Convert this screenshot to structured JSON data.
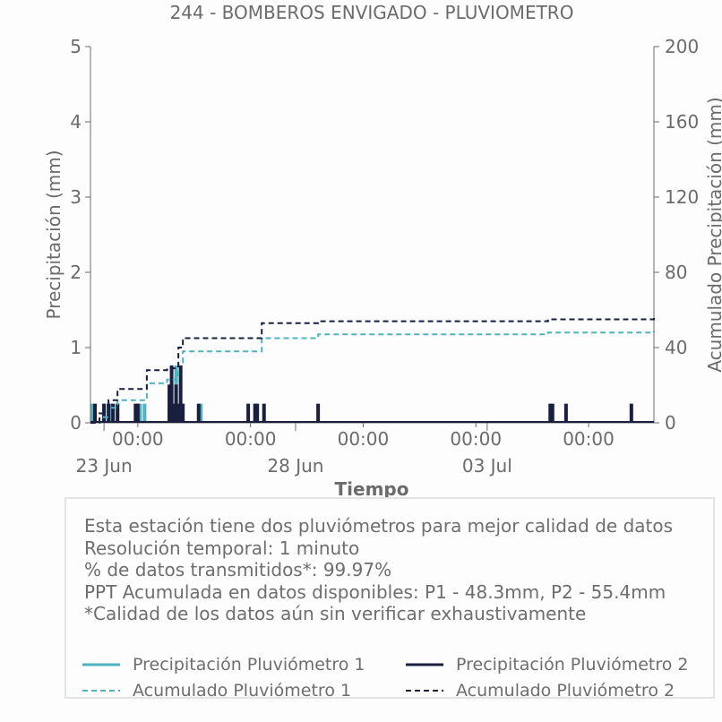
{
  "chart_data": {
    "type": "bar+line",
    "title": "244 - BOMBEROS ENVIGADO - PLUVIOMETRO",
    "xlabel": "Tiempo",
    "ylabel": "Precipitación (mm)",
    "y2label": "Acumulado Precipitación (mm)",
    "ylim": [
      0,
      5
    ],
    "y2lim": [
      0,
      200
    ],
    "xlim_days": [
      -0.6,
      24.4
    ],
    "yticks": [
      "0",
      "1",
      "2",
      "3",
      "4",
      "5"
    ],
    "y2ticks": [
      "0",
      "40",
      "80",
      "120",
      "160",
      "200"
    ],
    "xticks_time": [
      {
        "day": 1.5,
        "label": "00:00"
      },
      {
        "day": 6.5,
        "label": "00:00"
      },
      {
        "day": 11.5,
        "label": "00:00"
      },
      {
        "day": 16.5,
        "label": "00:00"
      },
      {
        "day": 21.5,
        "label": "00:00"
      }
    ],
    "xticks_date": [
      {
        "day": 0,
        "label": "23 Jun"
      },
      {
        "day": 8.5,
        "label": "28 Jun"
      },
      {
        "day": 17,
        "label": "03 Jul"
      }
    ],
    "series": [
      {
        "name": "Precipitación Pluviómetro 1",
        "kind": "bar",
        "axis": "left",
        "color": "#4fb3bf",
        "x": [
          -0.5,
          0.0,
          0.3,
          0.6,
          1.5,
          1.6,
          1.8,
          2.9,
          3.0,
          3.2,
          3.4,
          4.3
        ],
        "y": [
          0.254,
          0.254,
          0.254,
          0.254,
          0.254,
          0.254,
          0.254,
          0.254,
          0.508,
          0.762,
          0.254,
          0.254
        ]
      },
      {
        "name": "Precipitación Pluviómetro 2",
        "kind": "bar",
        "axis": "left",
        "color": "#1a1e3f",
        "x": [
          -0.4,
          0.0,
          0.2,
          0.4,
          0.6,
          1.4,
          1.5,
          2.9,
          3.0,
          3.1,
          3.2,
          3.3,
          3.4,
          3.5,
          4.2,
          6.4,
          6.7,
          6.8,
          7.1,
          9.5,
          19.8,
          19.9,
          20.5,
          23.4
        ],
        "y": [
          0.254,
          0.254,
          0.254,
          0.254,
          0.254,
          0.254,
          0.254,
          0.508,
          0.762,
          0.254,
          0.508,
          0.254,
          0.762,
          0.254,
          0.254,
          0.254,
          0.254,
          0.254,
          0.254,
          0.254,
          0.254,
          0.254,
          0.254,
          0.254
        ]
      },
      {
        "name": "Acumulado Pluviómetro 1",
        "kind": "line",
        "dashed": true,
        "axis": "right",
        "color": "#4fb3bf",
        "x": [
          -0.6,
          -0.2,
          0.2,
          0.6,
          1.5,
          1.9,
          2.8,
          3.3,
          3.5,
          6.8,
          7.0,
          9.5,
          19.7,
          24.4
        ],
        "y": [
          0,
          3,
          8,
          12,
          12,
          21,
          23,
          32,
          38,
          38,
          45,
          47,
          48,
          49
        ]
      },
      {
        "name": "Acumulado Pluviómetro 2",
        "kind": "line",
        "dashed": true,
        "axis": "right",
        "color": "#1a1e3f",
        "x": [
          -0.6,
          -0.2,
          0.2,
          0.6,
          1.5,
          1.9,
          2.8,
          3.3,
          3.5,
          6.8,
          7.0,
          9.5,
          19.7,
          24.4
        ],
        "y": [
          0,
          5,
          12,
          18,
          18,
          28,
          29,
          40,
          45,
          45,
          53,
          54,
          55,
          56
        ]
      }
    ]
  },
  "info": {
    "line1": "Esta estación tiene dos pluviómetros para mejor calidad de datos",
    "line2": "Resolución temporal: 1 minuto",
    "line3": "% de datos transmitidos*: 99.97%",
    "line4": "PPT Acumulada en datos disponibles: P1 - 48.3mm, P2 - 55.4mm",
    "line5": "*Calidad de los datos aún sin verificar exhaustivamente"
  },
  "legend": {
    "p1": "Precipitación Pluviómetro 1",
    "p2": "Precipitación Pluviómetro 2",
    "a1": "Acumulado Pluviómetro 1",
    "a2": "Acumulado Pluviómetro 2"
  },
  "colors": {
    "p1": "#4fb3bf",
    "p2": "#1a1e3f",
    "axis": "#6b6b6b"
  }
}
